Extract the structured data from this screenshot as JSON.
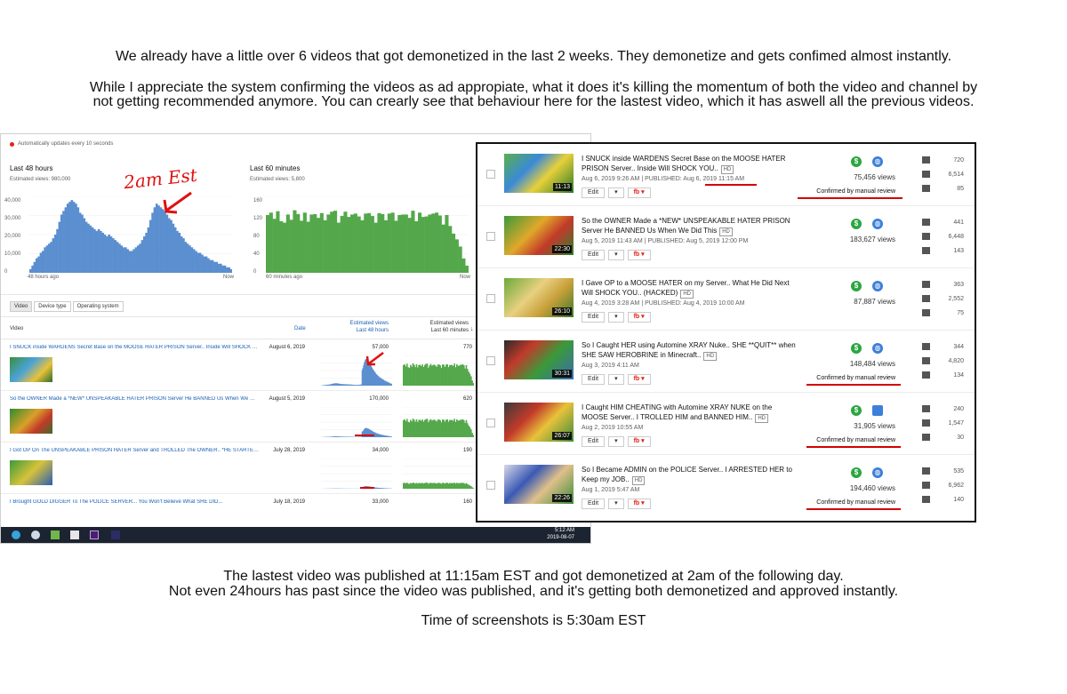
{
  "captions": {
    "top_line1": "We already have a little over 6 videos that got demonetized in the last 2 weeks. They demonetize and gets confimed almost instantly.",
    "top_line2": "While I appreciate the system confirming the videos as ad appropiate, what it does it's killing the momentum of both the video and channel by",
    "top_line3": "not getting recommended anymore. You can crearly see that behaviour here for the lastest video, which it has aswell all the previous videos.",
    "bottom_line1": "The lastest video was published at 11:15am EST and got demonetized at 2am of the following day.",
    "bottom_line2": "Not even 24hours has past since the video was published, and it's getting both demonetized and approved instantly.",
    "bottom_line3": "Time of screenshots is 5:30am EST"
  },
  "analytics": {
    "auto_update": "Automatically updates every 10 seconds",
    "annotation": "2am Est",
    "panel48": {
      "title": "Last 48 hours",
      "subtitle": "Estimated views: 980,000",
      "y_ticks": [
        "40,000",
        "30,000",
        "20,000",
        "10,000",
        "0"
      ],
      "x_left": "48 hours ago",
      "x_right": "Now"
    },
    "panel60": {
      "title": "Last 60 minutes",
      "subtitle": "Estimated views: 5,800",
      "y_ticks": [
        "160",
        "120",
        "80",
        "40",
        "0"
      ],
      "x_left": "60 minutes ago",
      "x_right": "Now"
    },
    "tabs": [
      "Video",
      "Device type",
      "Operating system"
    ],
    "table_headers": {
      "video": "Video",
      "date": "Date",
      "est48_a": "Estimated views",
      "est48_b": "Last 48 hours",
      "est60_a": "Estimated views",
      "est60_b": "Last 60 minutes"
    },
    "rows": [
      {
        "title": "I SNUCK inside WARDENS Secret Base on the MOOSE HATER PRISON Server.. Inside Will SHOCK Y...",
        "date": "August 6, 2019",
        "v48": "57,000",
        "v60": "770"
      },
      {
        "title": "So the OWNER Made a *NEW* UNSPEAKABLE HATER PRISON Server He BANNED Us When We Did ...",
        "date": "August 5, 2019",
        "v48": "170,000",
        "v60": "620"
      },
      {
        "title": "I Got OP On The UNSPEAKABLE PRISON HATER Server and TROLLED The OWNER.. *HE STARTED ...",
        "date": "July 28, 2019",
        "v48": "34,000",
        "v60": "190"
      },
      {
        "title": "I Brought GOLD DIGGER To The POLICE SERVER... You Won't Believe What SHE DID...",
        "date": "July 18, 2019",
        "v48": "33,000",
        "v60": "160"
      }
    ],
    "taskbar": {
      "time": "5:12 AM",
      "date": "2019-08-07"
    }
  },
  "videos": {
    "edit_label": "Edit",
    "hd_label": "HD",
    "items": [
      {
        "title": "I SNUCK inside WARDENS Secret Base on the MOOSE HATER PRISON Server.. Inside Will SHOCK YOU..",
        "meta": "Aug 6, 2019 9:26 AM | PUBLISHED: Aug 6, 2019 11:15 AM",
        "views": "75,456 views",
        "duration": "11:13",
        "confirmed": "Confirmed by manual review",
        "comments": "720",
        "likes": "6,514",
        "dislikes": "85"
      },
      {
        "title": "So the OWNER Made a *NEW* UNSPEAKABLE HATER PRISON Server He BANNED Us When We Did This",
        "meta": "Aug 5, 2019 11:43 AM | PUBLISHED: Aug 5, 2019 12:00 PM",
        "views": "183,627 views",
        "duration": "22:30",
        "confirmed": "",
        "comments": "441",
        "likes": "6,448",
        "dislikes": "143"
      },
      {
        "title": "I Gave OP to a MOOSE HATER on my Server.. What He Did Next Will SHOCK YOU.. (HACKED)",
        "meta": "Aug 4, 2019 3:28 AM | PUBLISHED: Aug 4, 2019 10:00 AM",
        "views": "87,887 views",
        "duration": "26:10",
        "confirmed": "",
        "comments": "363",
        "likes": "2,552",
        "dislikes": "75"
      },
      {
        "title": "So I Caught HER using Automine XRAY Nuke.. SHE **QUIT** when SHE SAW HEROBRINE in Minecraft..",
        "meta": "Aug 3, 2019 4:11 AM",
        "views": "148,484 views",
        "duration": "30:31",
        "confirmed": "Confirmed by manual review",
        "comments": "344",
        "likes": "4,820",
        "dislikes": "134"
      },
      {
        "title": "I Caught HIM CHEATING with Automine XRAY NUKE on the MOOSE Server.. I TROLLED HIM and BANNED HIM..",
        "meta": "Aug 2, 2019 10:55 AM",
        "views": "31,905 views",
        "duration": "26:07",
        "confirmed": "Confirmed by manual review",
        "comments": "240",
        "likes": "1,547",
        "dislikes": "30"
      },
      {
        "title": "So I Became ADMIN on the POLICE Server.. I ARRESTED HER to Keep my JOB..",
        "meta": "Aug 1, 2019 5:47 AM",
        "views": "194,460 views",
        "duration": "22:26",
        "confirmed": "Confirmed by manual review",
        "comments": "535",
        "likes": "6,962",
        "dislikes": "140"
      }
    ]
  },
  "colors": {
    "bar_blue": "#5b8fcf",
    "bar_green": "#54a84b",
    "annotation_red": "#e01010",
    "dollar_green": "#2ba640",
    "globe_blue": "#3d7fd9"
  },
  "chart_48h": [
    2,
    4,
    6,
    8,
    9,
    11,
    12,
    14,
    15,
    16,
    17,
    19,
    21,
    24,
    28,
    32,
    34,
    36,
    38,
    39,
    40,
    39,
    38,
    36,
    33,
    32,
    30,
    28,
    27,
    26,
    25,
    24,
    23,
    24,
    23,
    22,
    21,
    20,
    21,
    20,
    19,
    18,
    17,
    16,
    15,
    14,
    14,
    13,
    12,
    12,
    13,
    14,
    15,
    16,
    18,
    20,
    22,
    25,
    29,
    33,
    36,
    38,
    37,
    36,
    35,
    34,
    32,
    30,
    29,
    27,
    25,
    23,
    22,
    20,
    19,
    17,
    16,
    15,
    14,
    13,
    12,
    11,
    11,
    10,
    9,
    9,
    8,
    7,
    7,
    6,
    6,
    5,
    5,
    4,
    4,
    3,
    3,
    2
  ],
  "chart_60m": [
    121,
    126,
    113,
    129,
    108,
    105,
    122,
    111,
    131,
    123,
    109,
    126,
    107,
    122,
    123,
    115,
    125,
    110,
    122,
    128,
    130,
    105,
    119,
    128,
    117,
    122,
    124,
    118,
    110,
    124,
    125,
    119,
    105,
    125,
    123,
    110,
    124,
    126,
    109,
    121,
    122,
    122,
    115,
    130,
    108,
    126,
    117,
    118,
    122,
    124,
    126,
    120,
    101,
    121,
    98,
    82,
    70,
    55,
    30,
    15
  ]
}
